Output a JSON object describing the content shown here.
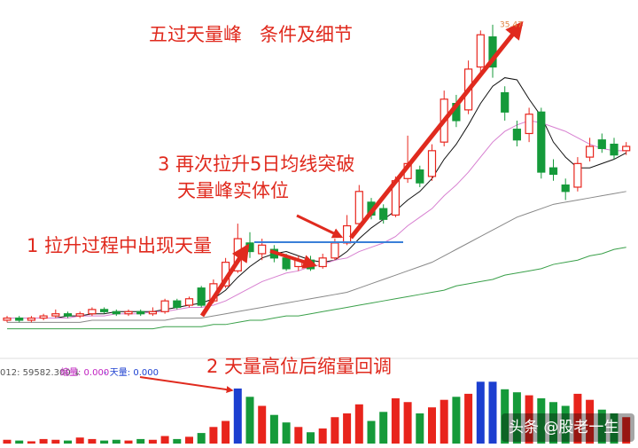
{
  "chart_data": {
    "type": "candlestick",
    "title": "五过天量峰   条件及细节",
    "annotations": [
      "3 再次拉升5日均线突破",
      "天量峰实体位",
      "1 拉升过程中出现天量",
      "2 天量高位后缩量回调"
    ],
    "volume_header": [
      "012: 59582.300 ↓",
      "缩量: 0.000",
      "- 天量: 0.000"
    ],
    "watermark": "头条 @股老一生",
    "up_color": "#e8241c",
    "down_color": "#159a3a",
    "highlight_color": "#1c3fd0",
    "highlight_bars": [
      19,
      39,
      40
    ],
    "ylim": [
      20.5,
      36
    ],
    "vlim": [
      0,
      100
    ],
    "open": [
      21.7,
      21.8,
      21.7,
      21.8,
      21.9,
      22.0,
      21.9,
      22.0,
      22.2,
      22.1,
      22.0,
      22.1,
      22.0,
      22.1,
      22.6,
      22.4,
      23.2,
      22.6,
      23.3,
      24.0,
      25.3,
      24.8,
      25.0,
      24.6,
      24.2,
      24.5,
      24.2,
      24.6,
      25.3,
      26.2,
      27.2,
      26.9,
      26.6,
      28.3,
      28.7,
      28.4,
      30.0,
      31.8,
      31.5,
      33.5,
      34.9,
      32.3,
      30.6,
      30.4,
      31.4,
      28.8,
      28.0,
      27.9,
      29.3,
      30.1,
      29.9,
      29.6
    ],
    "close": [
      21.8,
      21.7,
      21.8,
      21.9,
      22.0,
      21.9,
      22.0,
      22.2,
      22.1,
      22.0,
      22.1,
      22.0,
      22.1,
      22.6,
      22.3,
      22.7,
      22.4,
      23.4,
      24.4,
      25.5,
      24.9,
      25.2,
      24.6,
      24.1,
      24.5,
      24.1,
      24.6,
      25.3,
      26.1,
      27.7,
      26.6,
      26.4,
      28.2,
      29.0,
      28.1,
      29.6,
      32.0,
      31.0,
      33.4,
      35.0,
      33.5,
      31.4,
      30.1,
      31.3,
      28.6,
      28.5,
      27.7,
      29.0,
      29.8,
      29.7,
      29.4,
      29.8
    ],
    "high": [
      21.9,
      21.9,
      21.9,
      22.0,
      22.2,
      22.1,
      22.1,
      22.3,
      22.3,
      22.2,
      22.2,
      22.2,
      22.3,
      22.7,
      22.7,
      22.8,
      23.3,
      23.6,
      24.6,
      26.2,
      25.8,
      25.5,
      25.2,
      24.8,
      24.7,
      24.7,
      24.8,
      25.5,
      26.6,
      28.0,
      27.4,
      27.1,
      28.4,
      30.3,
      28.9,
      29.9,
      32.4,
      32.2,
      33.8,
      35.2,
      35.47,
      32.6,
      31.0,
      31.6,
      31.6,
      29.2,
      28.3,
      29.3,
      30.2,
      30.4,
      30.2,
      30.0
    ],
    "low": [
      21.6,
      21.6,
      21.6,
      21.7,
      21.8,
      21.8,
      21.8,
      21.9,
      22.0,
      21.9,
      21.9,
      21.9,
      21.9,
      22.0,
      22.2,
      22.3,
      22.3,
      22.5,
      23.2,
      23.9,
      24.6,
      24.5,
      24.4,
      24.0,
      24.0,
      24.0,
      24.1,
      24.5,
      25.2,
      26.0,
      26.4,
      26.2,
      26.5,
      28.1,
      27.9,
      28.2,
      29.8,
      30.7,
      31.3,
      33.2,
      33.0,
      31.0,
      29.8,
      30.0,
      28.3,
      28.2,
      27.3,
      27.7,
      29.1,
      29.5,
      29.2,
      29.4
    ],
    "volume": [
      5,
      4,
      3,
      6,
      5,
      4,
      8,
      6,
      4,
      5,
      4,
      6,
      5,
      10,
      6,
      9,
      14,
      22,
      30,
      73,
      62,
      50,
      38,
      28,
      22,
      15,
      20,
      35,
      40,
      52,
      30,
      42,
      60,
      55,
      40,
      48,
      58,
      62,
      66,
      82,
      82,
      72,
      68,
      64,
      60,
      55,
      50,
      66,
      58,
      45,
      40,
      35
    ],
    "series": [
      {
        "color": "#111111",
        "values": [
          21.8,
          21.8,
          21.8,
          21.8,
          21.8,
          21.9,
          21.9,
          22.0,
          22.0,
          22.1,
          22.1,
          22.1,
          22.1,
          22.2,
          22.3,
          22.4,
          22.5,
          22.7,
          23.1,
          23.7,
          24.2,
          24.6,
          24.8,
          24.9,
          24.7,
          24.5,
          24.4,
          24.5,
          24.9,
          25.5,
          26.0,
          26.4,
          26.8,
          27.3,
          27.7,
          28.3,
          29.2,
          29.9,
          30.8,
          31.8,
          32.6,
          33.0,
          32.9,
          32.0,
          31.2,
          30.0,
          29.3,
          28.8,
          28.8,
          29.0,
          29.2,
          29.5
        ]
      },
      {
        "color": "#d77fd0",
        "values": [
          21.8,
          21.8,
          21.8,
          21.8,
          21.8,
          21.8,
          21.9,
          21.9,
          21.9,
          22.0,
          22.0,
          22.0,
          22.1,
          22.1,
          22.2,
          22.3,
          22.3,
          22.4,
          22.6,
          22.9,
          23.2,
          23.5,
          23.7,
          23.9,
          24.0,
          24.2,
          24.3,
          24.5,
          24.6,
          24.9,
          25.1,
          25.3,
          25.6,
          26.1,
          26.5,
          26.9,
          27.5,
          28.0,
          28.6,
          29.3,
          30.0,
          30.5,
          30.8,
          31.0,
          30.9,
          30.7,
          30.5,
          30.2,
          29.9,
          29.7,
          29.6,
          29.6
        ]
      },
      {
        "color": "#888888",
        "values": [
          21.6,
          21.6,
          21.6,
          21.6,
          21.6,
          21.6,
          21.6,
          21.7,
          21.7,
          21.7,
          21.7,
          21.7,
          21.7,
          21.7,
          21.8,
          21.8,
          21.8,
          21.9,
          22.0,
          22.1,
          22.2,
          22.3,
          22.4,
          22.5,
          22.6,
          22.7,
          22.8,
          22.9,
          23.0,
          23.2,
          23.4,
          23.6,
          23.8,
          24.0,
          24.2,
          24.4,
          24.7,
          25.0,
          25.3,
          25.6,
          25.9,
          26.2,
          26.5,
          26.7,
          26.9,
          27.1,
          27.2,
          27.3,
          27.4,
          27.5,
          27.6,
          27.7
        ]
      },
      {
        "color": "#3aa04a",
        "values": [
          21.3,
          21.3,
          21.3,
          21.3,
          21.3,
          21.3,
          21.3,
          21.3,
          21.3,
          21.3,
          21.3,
          21.3,
          21.3,
          21.4,
          21.4,
          21.4,
          21.4,
          21.5,
          21.5,
          21.6,
          21.7,
          21.7,
          21.8,
          21.9,
          21.9,
          22.0,
          22.1,
          22.2,
          22.3,
          22.4,
          22.5,
          22.6,
          22.7,
          22.8,
          22.9,
          23.0,
          23.1,
          23.3,
          23.4,
          23.5,
          23.6,
          23.8,
          23.9,
          24.0,
          24.1,
          24.3,
          24.4,
          24.5,
          24.7,
          24.8,
          25.0,
          25.1
        ]
      }
    ]
  }
}
